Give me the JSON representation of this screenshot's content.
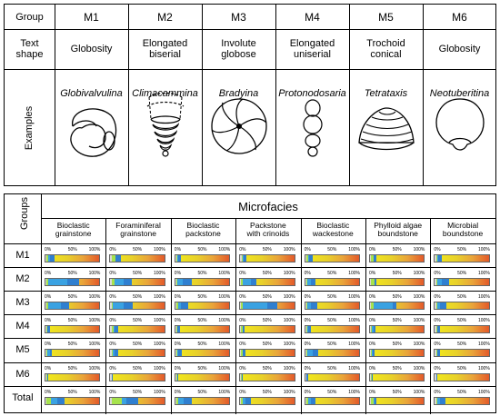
{
  "top_table": {
    "group_label": "Group",
    "shape_label": "Text\nshape",
    "examples_label": "Examples",
    "groups": [
      {
        "id": "M1",
        "shape": "Globosity",
        "example": "Globivalvulina",
        "icon": "globivalvulina-fossil-icon"
      },
      {
        "id": "M2",
        "shape": "Elongated\nbiserial",
        "example": "Climacammina",
        "icon": "climacammina-fossil-icon"
      },
      {
        "id": "M3",
        "shape": "Involute\nglobose",
        "example": "Bradyina",
        "icon": "bradyina-fossil-icon"
      },
      {
        "id": "M4",
        "shape": "Elongated\nuniserial",
        "example": "Protonodosaria",
        "icon": "protonodosaria-fossil-icon"
      },
      {
        "id": "M5",
        "shape": "Trochoid\nconical",
        "example": "Tetrataxis",
        "icon": "tetrataxis-fossil-icon"
      },
      {
        "id": "M6",
        "shape": "Globosity",
        "example": "Neotuberitina",
        "icon": "neotuberitina-fossil-icon"
      }
    ]
  },
  "bottom_table": {
    "groups_label": "Groups",
    "title": "Microfacies",
    "tick_labels": [
      "0%",
      "50%",
      "100%"
    ],
    "microfacies": [
      "Bioclastic\ngrainstone",
      "Foraminiferal\ngrainstone",
      "Bioclastic\npackstone",
      "Packstone\nwith crinoids",
      "Bioclastic\nwackestone",
      "Phylloid algae\nboundstone",
      "Microbial\nboundstone"
    ],
    "row_labels": [
      "M1",
      "M2",
      "M3",
      "M4",
      "M5",
      "M6",
      "Total"
    ],
    "colors": {
      "yellow": "#f2ea1a",
      "orange": "#e9a33a",
      "red": "#e45a2a",
      "green": "#a6e24c",
      "blue": "#3aa2e2",
      "darkblue": "#2f7fd0"
    },
    "bars": [
      [
        [
          0.02,
          0.05,
          0.08,
          0.16
        ],
        [
          0.02,
          0.1,
          0.1,
          0.2
        ],
        [
          0.02,
          0.04,
          0.05,
          0.1
        ],
        [
          0.03,
          0.05,
          0.06,
          0.12
        ],
        [
          0.02,
          0.05,
          0.08,
          0.14
        ],
        [
          0.02,
          0.06,
          0.06,
          0.11
        ],
        [
          0.02,
          0.04,
          0.06,
          0.12
        ]
      ],
      [
        [
          0.02,
          0.05,
          0.4,
          0.62
        ],
        [
          0.02,
          0.08,
          0.25,
          0.4
        ],
        [
          0.02,
          0.04,
          0.14,
          0.3
        ],
        [
          0.02,
          0.04,
          0.2,
          0.3
        ],
        [
          0.02,
          0.04,
          0.1,
          0.2
        ],
        [
          0.02,
          0.08,
          0.08,
          0.12
        ],
        [
          0.02,
          0.04,
          0.12,
          0.26
        ]
      ],
      [
        [
          0.02,
          0.05,
          0.28,
          0.44
        ],
        [
          0.02,
          0.04,
          0.25,
          0.42
        ],
        [
          0.02,
          0.05,
          0.1,
          0.24
        ],
        [
          0.02,
          0.05,
          0.5,
          0.68
        ],
        [
          0.02,
          0.04,
          0.1,
          0.22
        ],
        [
          0.02,
          0.06,
          0.42,
          0.48
        ],
        [
          0.02,
          0.04,
          0.1,
          0.22
        ]
      ],
      [
        [
          0.02,
          0.04,
          0.04,
          0.08
        ],
        [
          0.02,
          0.06,
          0.08,
          0.14
        ],
        [
          0.02,
          0.04,
          0.04,
          0.09
        ],
        [
          0.02,
          0.04,
          0.04,
          0.08
        ],
        [
          0.02,
          0.04,
          0.05,
          0.1
        ],
        [
          0.02,
          0.04,
          0.06,
          0.1
        ],
        [
          0.02,
          0.04,
          0.05,
          0.1
        ]
      ],
      [
        [
          0.02,
          0.04,
          0.08,
          0.12
        ],
        [
          0.02,
          0.05,
          0.07,
          0.14
        ],
        [
          0.02,
          0.04,
          0.06,
          0.12
        ],
        [
          0.02,
          0.04,
          0.05,
          0.09
        ],
        [
          0.02,
          0.04,
          0.14,
          0.24
        ],
        [
          0.02,
          0.04,
          0.05,
          0.08
        ],
        [
          0.02,
          0.04,
          0.05,
          0.1
        ]
      ],
      [
        [
          0.02,
          0.03,
          0.03,
          0.05
        ],
        [
          0.02,
          0.03,
          0.03,
          0.05
        ],
        [
          0.02,
          0.03,
          0.03,
          0.05
        ],
        [
          0.02,
          0.03,
          0.03,
          0.05
        ],
        [
          0.02,
          0.03,
          0.03,
          0.05
        ],
        [
          0.02,
          0.03,
          0.03,
          0.05
        ],
        [
          0.02,
          0.03,
          0.03,
          0.05
        ]
      ],
      [
        [
          0.02,
          0.1,
          0.22,
          0.36
        ],
        [
          0.02,
          0.22,
          0.3,
          0.52
        ],
        [
          0.02,
          0.05,
          0.15,
          0.3
        ],
        [
          0.02,
          0.05,
          0.1,
          0.2
        ],
        [
          0.02,
          0.05,
          0.1,
          0.2
        ],
        [
          0.02,
          0.06,
          0.08,
          0.12
        ],
        [
          0.02,
          0.04,
          0.1,
          0.2
        ]
      ]
    ]
  }
}
